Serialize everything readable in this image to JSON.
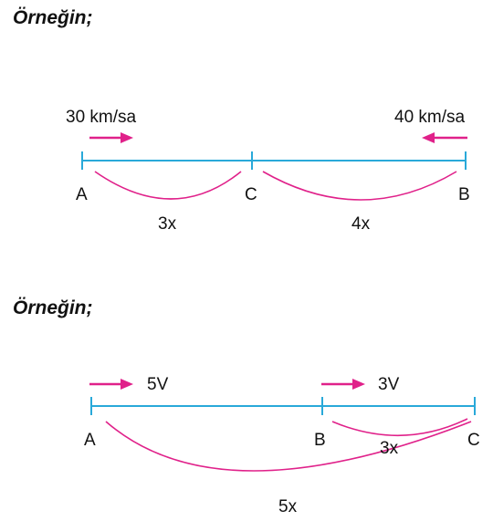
{
  "example1": {
    "heading": "Örneğin;",
    "speed_left": "30 km/sa",
    "speed_right": "40 km/sa",
    "point_a": "A",
    "point_c": "C",
    "point_b": "B",
    "dist_ac": "3x",
    "dist_cb": "4x"
  },
  "example2": {
    "heading": "Örneğin;",
    "speed_a": "5V",
    "speed_b": "3V",
    "point_a": "A",
    "point_b": "B",
    "point_c": "C",
    "dist_bc": "3x",
    "dist_ac": "5x"
  },
  "colors": {
    "line": "#29a9d9",
    "arc": "#e0218a",
    "arrow": "#e0218a",
    "text": "#111111"
  }
}
